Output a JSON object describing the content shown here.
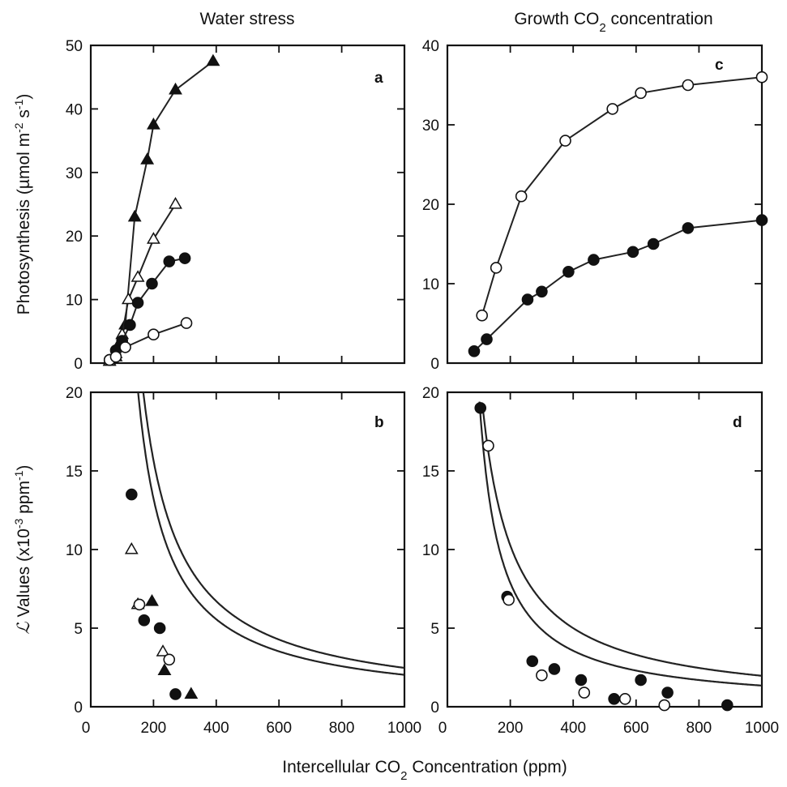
{
  "figure": {
    "column_titles": {
      "left": "Water stress",
      "right_prefix": "Growth CO",
      "right_sub": "2",
      "right_suffix": " concentration"
    },
    "y_title_top": {
      "prefix": "Photosynthesis (µmol m",
      "sup1": "-2",
      "mid": " s",
      "sup2": "-1",
      "suffix": ")"
    },
    "y_title_bottom": {
      "symbol": "ℒ",
      "prefix": " Values (x10",
      "sup1": "-3",
      "mid": " ppm",
      "sup2": "-1",
      "suffix": ")"
    },
    "x_title": {
      "prefix": "Intercellular CO",
      "sub": "2",
      "suffix": " Concentration (ppm)"
    }
  },
  "chart_data": [
    {
      "panel": "a",
      "type": "line",
      "ylim": [
        0,
        50
      ],
      "yticks": [
        0,
        10,
        20,
        30,
        40,
        50
      ],
      "xlim": [
        0,
        1000
      ],
      "xticks": [
        0,
        200,
        400,
        600,
        800,
        1000
      ],
      "show_x_tick_labels": false,
      "series": [
        {
          "marker": "triangle",
          "filled": true,
          "x": [
            60,
            80,
            90,
            110,
            140,
            180,
            200,
            270,
            390
          ],
          "y": [
            0.3,
            1,
            3,
            6,
            23,
            32,
            37.5,
            43,
            47.5
          ]
        },
        {
          "marker": "triangle",
          "filled": false,
          "x": [
            60,
            80,
            100,
            120,
            150,
            200,
            270
          ],
          "y": [
            0.3,
            1.5,
            4.5,
            10,
            13.5,
            19.5,
            25
          ]
        },
        {
          "marker": "circle",
          "filled": true,
          "x": [
            60,
            80,
            100,
            125,
            150,
            195,
            250,
            300
          ],
          "y": [
            0.5,
            2,
            3.5,
            6,
            9.5,
            12.5,
            16,
            16.5
          ]
        },
        {
          "marker": "circle",
          "filled": false,
          "x": [
            60,
            80,
            110,
            200,
            305
          ],
          "y": [
            0.5,
            1,
            2.5,
            4.5,
            6.3
          ]
        }
      ]
    },
    {
      "panel": "c",
      "type": "line",
      "ylim": [
        0,
        40
      ],
      "yticks": [
        0,
        10,
        20,
        30,
        40
      ],
      "xlim": [
        0,
        1000
      ],
      "xticks": [
        0,
        200,
        400,
        600,
        800,
        1000
      ],
      "show_x_tick_labels": false,
      "series": [
        {
          "marker": "circle",
          "filled": false,
          "x": [
            110,
            155,
            235,
            375,
            525,
            615,
            765,
            1000
          ],
          "y": [
            6,
            12,
            21,
            28,
            32,
            34,
            35,
            36
          ]
        },
        {
          "marker": "circle",
          "filled": true,
          "x": [
            85,
            125,
            255,
            300,
            385,
            465,
            590,
            655,
            765,
            1000
          ],
          "y": [
            1.5,
            3,
            8,
            9,
            11.5,
            13,
            14,
            15,
            17,
            18
          ]
        }
      ]
    },
    {
      "panel": "b",
      "type": "scatter",
      "ylim": [
        0,
        20
      ],
      "yticks": [
        0,
        5,
        10,
        15,
        20
      ],
      "xlim": [
        0,
        1000
      ],
      "xticks": [
        0,
        200,
        400,
        600,
        800,
        1000
      ],
      "show_x_tick_labels": true,
      "curves": [
        {
          "k": 2.35,
          "x0": 50,
          "xstart": 102
        },
        {
          "k": 1.92,
          "x0": 55,
          "xstart": 103
        }
      ],
      "series": [
        {
          "marker": "circle",
          "filled": true,
          "x": [
            130,
            170,
            220,
            270
          ],
          "y": [
            13.5,
            5.5,
            5,
            0.8
          ]
        },
        {
          "marker": "triangle",
          "filled": false,
          "x": [
            130,
            150,
            230
          ],
          "y": [
            10,
            6.5,
            3.5
          ]
        },
        {
          "marker": "triangle",
          "filled": true,
          "x": [
            195,
            235,
            320
          ],
          "y": [
            6.7,
            2.3,
            0.8
          ]
        },
        {
          "marker": "circle",
          "filled": false,
          "x": [
            155,
            250
          ],
          "y": [
            6.5,
            3
          ]
        }
      ]
    },
    {
      "panel": "d",
      "type": "scatter",
      "ylim": [
        0,
        20
      ],
      "yticks": [
        0,
        5,
        10,
        15,
        20
      ],
      "xlim": [
        0,
        1000
      ],
      "xticks": [
        0,
        200,
        400,
        600,
        800,
        1000
      ],
      "show_x_tick_labels": true,
      "curves": [
        {
          "k": 1.95,
          "x0": 10,
          "xstart": 112
        },
        {
          "k": 1.3,
          "x0": 35,
          "xstart": 102
        }
      ],
      "series": [
        {
          "marker": "circle",
          "filled": true,
          "x": [
            105,
            190,
            270,
            340,
            425,
            530,
            615,
            700,
            890
          ],
          "y": [
            19,
            7,
            2.9,
            2.4,
            1.7,
            0.5,
            1.7,
            0.9,
            0.1
          ]
        },
        {
          "marker": "circle",
          "filled": false,
          "x": [
            130,
            195,
            300,
            435,
            565,
            690
          ],
          "y": [
            16.6,
            6.8,
            2,
            0.9,
            0.5,
            0.1
          ]
        }
      ]
    }
  ]
}
